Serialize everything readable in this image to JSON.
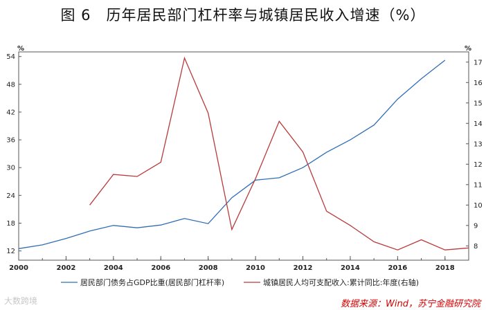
{
  "title": "图 6　历年居民部门杠杆率与城镇居民收入增速（%）",
  "source": "数据来源：Wind，苏宁金融研究院",
  "watermark": "大数跨境",
  "colors": {
    "left_series": "#2f6db5",
    "right_series": "#b83a3a",
    "axis": "#555555"
  },
  "chart_data": {
    "type": "line",
    "left_axis": {
      "unit": "%",
      "ylim": [
        10,
        55
      ],
      "ticks": [
        12,
        18,
        24,
        30,
        36,
        42,
        48,
        54
      ]
    },
    "right_axis": {
      "unit": "%",
      "ylim": [
        7.3,
        17.5
      ],
      "ticks": [
        8,
        9,
        10,
        11,
        12,
        13,
        14,
        15,
        16,
        17
      ]
    },
    "x_axis": {
      "xlim": [
        2000,
        2019
      ],
      "ticks": [
        2000,
        2002,
        2004,
        2006,
        2008,
        2010,
        2012,
        2014,
        2016,
        2018
      ]
    },
    "series": [
      {
        "name": "居民部门债务占GDP比重(居民部门杠杆率)",
        "axis": "left",
        "x": [
          2000,
          2001,
          2002,
          2003,
          2004,
          2005,
          2006,
          2007,
          2008,
          2009,
          2010,
          2011,
          2012,
          2013,
          2014,
          2015,
          2016,
          2017,
          2018
        ],
        "values": [
          12.5,
          13.3,
          14.7,
          16.3,
          17.5,
          17.0,
          17.6,
          19.0,
          17.9,
          23.5,
          27.3,
          27.8,
          30.0,
          33.3,
          36.0,
          39.2,
          44.8,
          49.2,
          53.2
        ]
      },
      {
        "name": "城镇居民人均可支配收入:累计同比:年度(右轴)",
        "axis": "right",
        "x": [
          2003,
          2004,
          2005,
          2006,
          2007,
          2008,
          2009,
          2010,
          2011,
          2012,
          2013,
          2014,
          2015,
          2016,
          2017,
          2018,
          2019
        ],
        "values": [
          10.0,
          11.5,
          11.4,
          12.1,
          17.2,
          14.5,
          8.8,
          11.3,
          14.1,
          12.6,
          9.7,
          9.0,
          8.2,
          7.8,
          8.3,
          7.8,
          7.9
        ]
      }
    ]
  }
}
